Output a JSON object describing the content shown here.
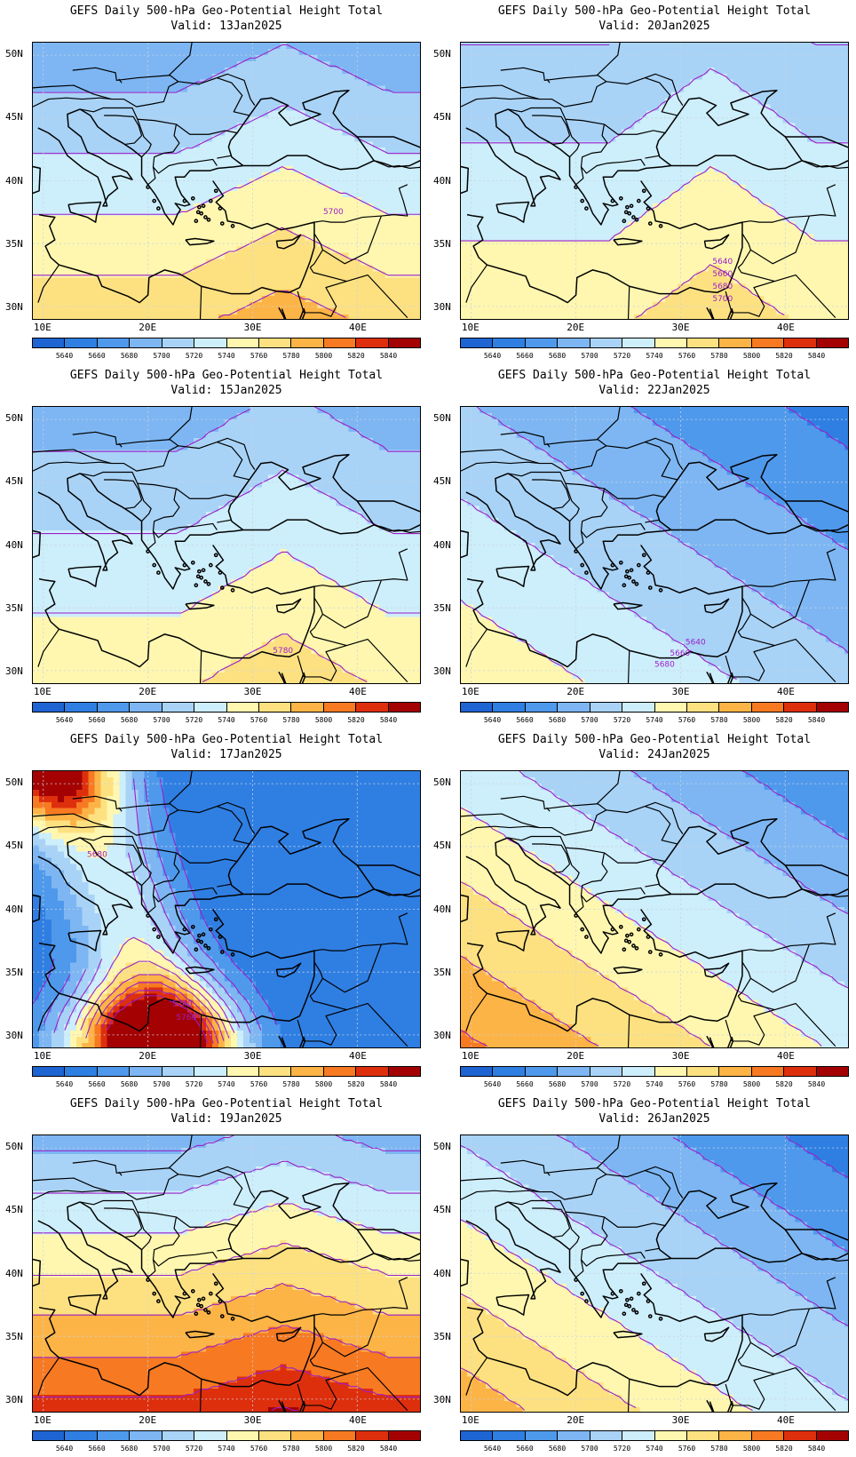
{
  "panels": [
    {
      "title": "GEFS Daily 500-hPa Geo-Potential Height Total",
      "valid": "Valid:  13Jan2025",
      "contour_labels": [
        "5700"
      ],
      "field": {
        "kind": "south",
        "base": 25,
        "step": 1.6
      }
    },
    {
      "title": "GEFS Daily 500-hPa Geo-Potential Height Total",
      "valid": "Valid:  20Jan2025",
      "contour_labels": [
        "5640",
        "5660",
        "5680",
        "5700"
      ],
      "field": {
        "kind": "south",
        "base": 31,
        "step": 1.0
      }
    },
    {
      "title": "GEFS Daily 500-hPa Geo-Potential Height Total",
      "valid": "Valid:  15Jan2025",
      "contour_labels": [
        "5780"
      ],
      "field": {
        "kind": "south",
        "base": 27,
        "step": 1.2
      }
    },
    {
      "title": "GEFS Daily 500-hPa Geo-Potential Height Total",
      "valid": "Valid:  22Jan2025",
      "contour_labels": [
        "5640",
        "5660",
        "5680"
      ],
      "field": {
        "kind": "southwest",
        "base": 32,
        "step": 1.6
      }
    },
    {
      "title": "GEFS Daily 500-hPa Geo-Potential Height Total",
      "valid": "Valid:  17Jan2025",
      "contour_labels": [
        "5680",
        "5740",
        "5760"
      ],
      "field": {
        "kind": "ridge"
      }
    },
    {
      "title": "GEFS Daily 500-hPa Geo-Potential Height Total",
      "valid": "Valid:  24Jan2025",
      "contour_labels": [],
      "field": {
        "kind": "southwest",
        "base": 43,
        "step": 2.2
      }
    },
    {
      "title": "GEFS Daily 500-hPa Geo-Potential Height Total",
      "valid": "Valid:  19Jan2025",
      "contour_labels": [],
      "field": {
        "kind": "south",
        "base": 28,
        "step": 2.4
      }
    },
    {
      "title": "GEFS Daily 500-hPa Geo-Potential Height Total",
      "valid": "Valid:  26Jan2025",
      "contour_labels": [],
      "field": {
        "kind": "southwest",
        "base": 38,
        "step": 2.2
      }
    }
  ],
  "lat_labels": [
    "50N",
    "45N",
    "40N",
    "35N",
    "30N"
  ],
  "lon_labels": [
    "10E",
    "20E",
    "30E",
    "40E"
  ],
  "lat_values": [
    50,
    45,
    40,
    35,
    30
  ],
  "lon_values": [
    10,
    20,
    30,
    40
  ],
  "map_extent": {
    "lon": [
      9,
      46
    ],
    "lat": [
      29,
      51
    ]
  },
  "colorbar": {
    "levels": [
      "5640",
      "5660",
      "5680",
      "5700",
      "5720",
      "5740",
      "5760",
      "5780",
      "5800",
      "5820",
      "5840"
    ],
    "colors": [
      "#1e64d2",
      "#2f7fe3",
      "#4f99ec",
      "#7db6f3",
      "#a8d3f7",
      "#cdeefb",
      "#fff7b0",
      "#fde181",
      "#fdb446",
      "#f77a22",
      "#de2f0d",
      "#a40202"
    ]
  },
  "contour_color": "#9b1fc9"
}
